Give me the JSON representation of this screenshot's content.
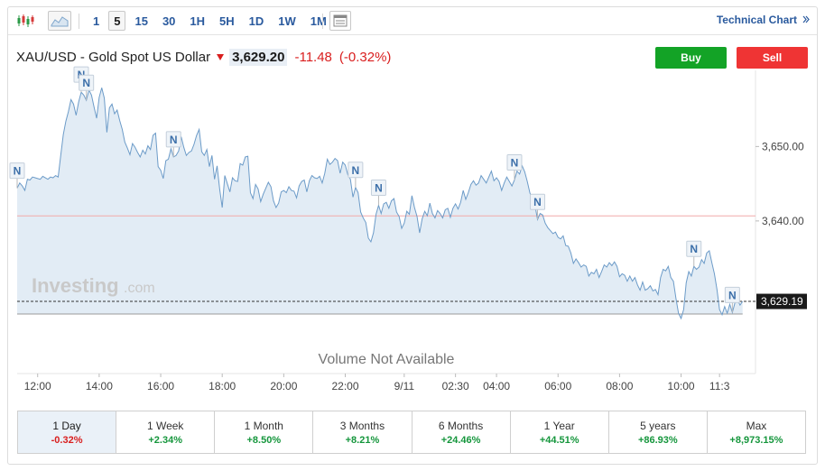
{
  "toolbar": {
    "candle_icon": "candlestick-chart-icon",
    "area_icon": "area-chart-icon",
    "table_icon": "data-table-icon",
    "intervals": [
      "1",
      "5",
      "15",
      "30",
      "1H",
      "5H",
      "1D",
      "1W",
      "1M"
    ],
    "active_interval": "5",
    "technical_chart_label": "Technical Chart",
    "technical_chart_icon": "double-chevron-right-icon"
  },
  "quote": {
    "symbol": "XAU/USD - Gold Spot US Dollar",
    "direction_icon": "down-arrow-icon",
    "price": "3,629.20",
    "change": "-11.48",
    "change_pct": "(-0.32%)"
  },
  "actions": {
    "buy": "Buy",
    "sell": "Sell"
  },
  "chart": {
    "watermark_brand": "Investing",
    "watermark_suffix": ".com",
    "volume_text": "Volume Not Available",
    "news_marker": "N"
  },
  "chart_data": {
    "type": "area",
    "y_ticks": [
      3650,
      3640
    ],
    "y_tick_labels": [
      "3,650.00",
      "3,640.00"
    ],
    "ylim": [
      3627.5,
      3659.5
    ],
    "previous_close": 3640.68,
    "last_price": 3629.19,
    "last_price_label": "3,629.19",
    "x_tick_labels": [
      "12:00",
      "14:00",
      "16:00",
      "18:00",
      "20:00",
      "22:00",
      "9/11",
      "02:30",
      "04:00",
      "06:00",
      "08:00",
      "10:00",
      "11:3"
    ],
    "x_tick_index": [
      8,
      32,
      56,
      80,
      104,
      128,
      151,
      171,
      187,
      211,
      235,
      259,
      274
    ],
    "series": [
      {
        "values": [
          3644.4,
          3645.1,
          3644.7,
          3644.1,
          3645.6,
          3645.5,
          3645.9,
          3645.8,
          3645.7,
          3645.6,
          3646.0,
          3645.8,
          3645.6,
          3645.9,
          3645.8,
          3646.1,
          3645.9,
          3648.8,
          3651.6,
          3653.4,
          3654.7,
          3656.3,
          3655.7,
          3654.2,
          3656.0,
          3657.3,
          3656.9,
          3656.2,
          3657.6,
          3656.9,
          3655.3,
          3653.8,
          3656.6,
          3657.9,
          3656.5,
          3651.9,
          3655.2,
          3655.7,
          3654.4,
          3654.9,
          3653.5,
          3652.3,
          3650.6,
          3649.8,
          3648.9,
          3650.4,
          3649.9,
          3649.2,
          3648.6,
          3649.5,
          3649.0,
          3650.1,
          3649.6,
          3651.5,
          3651.8,
          3647.3,
          3646.8,
          3645.7,
          3648.1,
          3648.3,
          3649.7,
          3648.6,
          3648.8,
          3649.4,
          3651.3,
          3649.9,
          3648.8,
          3649.2,
          3649.4,
          3650.3,
          3651.5,
          3652.3,
          3649.3,
          3648.8,
          3649.6,
          3647.3,
          3648.8,
          3645.6,
          3647.4,
          3644.3,
          3641.8,
          3646.1,
          3645.0,
          3643.9,
          3645.8,
          3645.4,
          3645.3,
          3647.7,
          3647.5,
          3648.6,
          3648.7,
          3643.8,
          3643.0,
          3644.9,
          3644.3,
          3642.6,
          3643.6,
          3644.4,
          3645.2,
          3644.6,
          3642.7,
          3641.8,
          3642.4,
          3643.9,
          3644.1,
          3643.8,
          3644.6,
          3644.1,
          3644.0,
          3643.1,
          3644.7,
          3645.3,
          3645.5,
          3643.9,
          3645.4,
          3646.1,
          3645.8,
          3645.7,
          3646.0,
          3645.1,
          3646.4,
          3648.3,
          3647.6,
          3647.9,
          3648.4,
          3648.1,
          3646.4,
          3647.9,
          3647.5,
          3646.2,
          3645.6,
          3643.2,
          3644.5,
          3643.8,
          3641.2,
          3640.4,
          3639.8,
          3637.7,
          3637.2,
          3638.4,
          3640.9,
          3642.1,
          3641.0,
          3642.3,
          3642.5,
          3641.7,
          3642.7,
          3643.0,
          3641.2,
          3640.6,
          3639.0,
          3639.7,
          3641.3,
          3640.9,
          3643.4,
          3641.8,
          3640.6,
          3638.4,
          3640.3,
          3641.3,
          3640.7,
          3642.4,
          3641.0,
          3640.4,
          3641.4,
          3641.0,
          3640.4,
          3641.5,
          3641.7,
          3640.5,
          3641.7,
          3642.3,
          3641.6,
          3642.5,
          3644.1,
          3642.9,
          3643.8,
          3644.9,
          3645.4,
          3644.8,
          3645.1,
          3646.1,
          3645.6,
          3645.1,
          3645.9,
          3646.7,
          3645.4,
          3645.8,
          3645.3,
          3644.1,
          3645.1,
          3645.9,
          3645.3,
          3644.7,
          3645.5,
          3646.7,
          3646.3,
          3647.4,
          3646.6,
          3645.3,
          3643.8,
          3642.7,
          3642.1,
          3640.2,
          3641.0,
          3640.8,
          3639.7,
          3639.1,
          3638.7,
          3638.3,
          3638.5,
          3637.8,
          3637.6,
          3638.0,
          3636.7,
          3636.6,
          3635.7,
          3634.3,
          3634.9,
          3634.4,
          3633.8,
          3634.1,
          3633.9,
          3632.6,
          3633.1,
          3632.9,
          3633.5,
          3632.4,
          3633.2,
          3634.1,
          3633.8,
          3634.4,
          3634.0,
          3634.5,
          3633.9,
          3632.5,
          3632.9,
          3632.7,
          3631.9,
          3632.6,
          3631.9,
          3632.4,
          3631.4,
          3630.7,
          3631.8,
          3630.7,
          3630.9,
          3631.3,
          3630.6,
          3630.8,
          3630.1,
          3632.4,
          3633.5,
          3633.3,
          3633.9,
          3632.4,
          3631.9,
          3629.6,
          3627.6,
          3626.9,
          3628.1,
          3631.7,
          3633.2,
          3632.6,
          3633.9,
          3633.5,
          3633.8,
          3634.8,
          3634.3,
          3635.7,
          3636.0,
          3634.4,
          3632.9,
          3630.8,
          3628.1,
          3627.4,
          3628.5,
          3627.6,
          3628.8,
          3627.7,
          3629.0,
          3629.4,
          3628.7,
          3629.2
        ]
      }
    ],
    "news_marker_index": [
      0,
      25,
      27,
      61,
      132,
      141,
      194,
      203,
      264,
      279
    ]
  },
  "periods": [
    {
      "label": "1 Day",
      "value": "-0.32%",
      "active": true,
      "neg": true
    },
    {
      "label": "1 Week",
      "value": "+2.34%"
    },
    {
      "label": "1 Month",
      "value": "+8.50%"
    },
    {
      "label": "3 Months",
      "value": "+8.21%"
    },
    {
      "label": "6 Months",
      "value": "+24.46%"
    },
    {
      "label": "1 Year",
      "value": "+44.51%"
    },
    {
      "label": "5 years",
      "value": "+86.93%"
    },
    {
      "label": "Max",
      "value": "+8,973.15%"
    }
  ]
}
